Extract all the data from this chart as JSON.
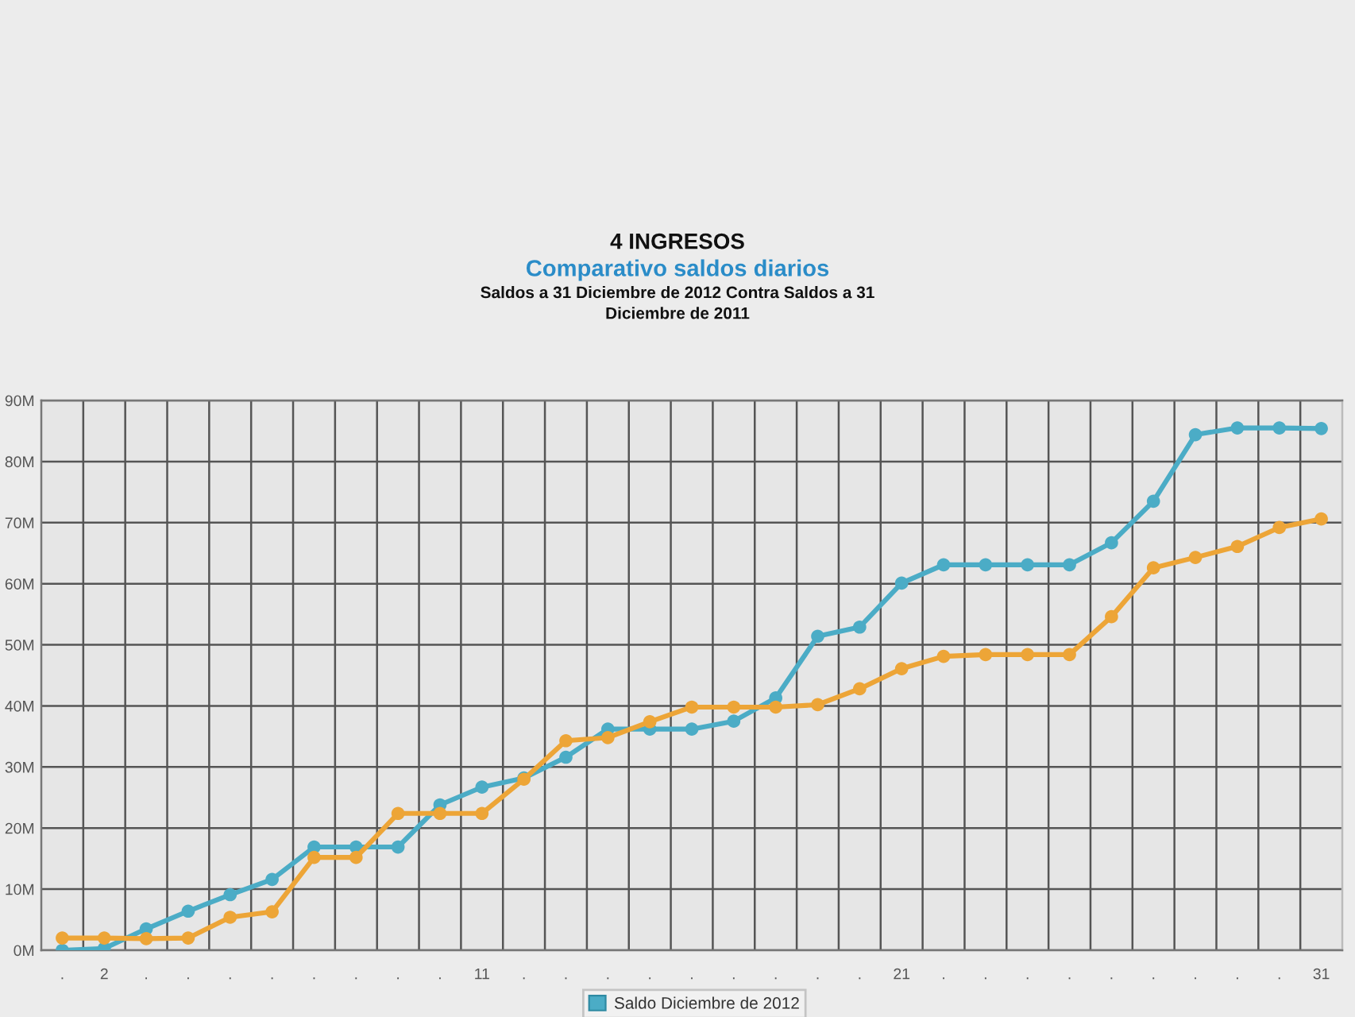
{
  "chart_data": {
    "type": "line",
    "title": "4 INGRESOS",
    "subtitle": "Comparativo saldos diarios",
    "annotations": [
      "Saldos a 31 Diciembre de 2012 Contra Saldos a 31\nDiciembre de 2011"
    ],
    "categories": [
      ".",
      "2",
      ".",
      ".",
      ".",
      ".",
      ".",
      ".",
      ".",
      ".",
      "11",
      ".",
      ".",
      ".",
      ".",
      ".",
      ".",
      ".",
      ".",
      ".",
      "21",
      ".",
      ".",
      ".",
      ".",
      ".",
      ".",
      ".",
      ".",
      ".",
      "31"
    ],
    "series": [
      {
        "name": "Saldo Diciembre de 2012",
        "color": "#4bacc6",
        "values": [
          0,
          0.3,
          3.5,
          6.4,
          9.1,
          11.6,
          16.9,
          16.9,
          16.9,
          23.8,
          26.7,
          28.2,
          31.6,
          36.2,
          36.2,
          36.2,
          37.5,
          41.3,
          51.4,
          52.9,
          60.1,
          63.1,
          63.1,
          63.1,
          63.1,
          66.7,
          73.5,
          84.4,
          85.5,
          85.5,
          85.4
        ]
      },
      {
        "color": "#eda537",
        "values": [
          2.0,
          2.0,
          1.9,
          2.0,
          5.4,
          6.3,
          15.2,
          15.2,
          22.4,
          22.4,
          22.4,
          28.0,
          34.3,
          34.8,
          37.4,
          39.8,
          39.8,
          39.8,
          40.2,
          42.8,
          46.1,
          48.1,
          48.4,
          48.4,
          48.4,
          54.6,
          62.6,
          64.3,
          66.1,
          69.2,
          70.6
        ]
      }
    ],
    "ylim": [
      0,
      90
    ],
    "yticks": [
      {
        "value": 0,
        "label": "0M"
      },
      {
        "value": 10,
        "label": "10M"
      },
      {
        "value": 20,
        "label": "20M"
      },
      {
        "value": 30,
        "label": "30M"
      },
      {
        "value": 40,
        "label": "40M"
      },
      {
        "value": 50,
        "label": "50M"
      },
      {
        "value": 60,
        "label": "60M"
      },
      {
        "value": 70,
        "label": "70M"
      },
      {
        "value": 80,
        "label": "80M"
      },
      {
        "value": 90,
        "label": "90M"
      }
    ],
    "grid": true,
    "legend": "bottom",
    "marker": "circle",
    "line_style": "solid"
  }
}
